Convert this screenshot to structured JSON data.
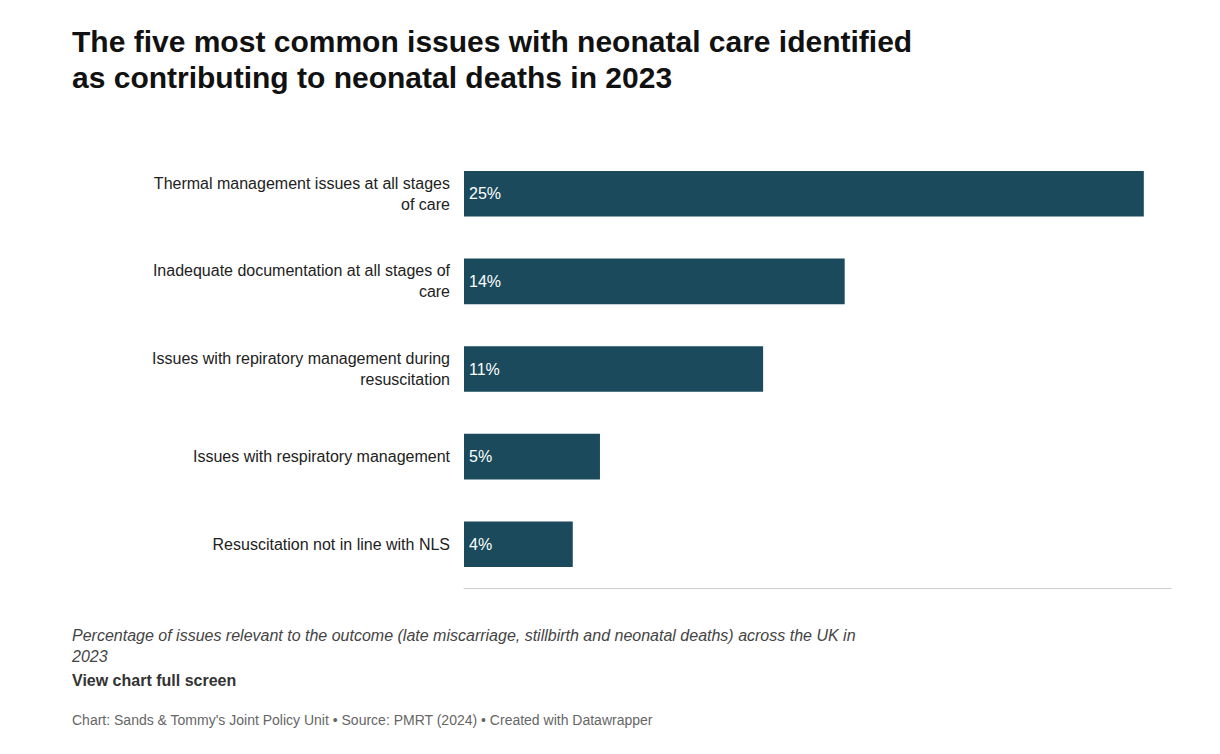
{
  "chart_data": {
    "type": "bar",
    "orientation": "horizontal",
    "title": "The five most common issues with neonatal care identified\nas contributing to neonatal deaths in 2023",
    "subtitle": "Percentage of issues relevant to the outcome (late miscarriage, stillbirth and neonatal deaths) across the UK in\n2023",
    "annotations": [
      "View chart full screen",
      "Chart: Sands & Tommy's Joint Policy Unit • Source: PMRT (2024) • Created with Datawrapper"
    ],
    "categories": [
      "Thermal management issues at all stages\nof care",
      "Inadequate documentation at all stages of\ncare",
      "Issues with repiratory management during\nresuscitation",
      "Issues with respiratory management",
      "Resuscitation not in line with NLS"
    ],
    "values": [
      25,
      14,
      11,
      5,
      4
    ],
    "value_labels": [
      "25%",
      "14%",
      "11%",
      "5%",
      "4%"
    ],
    "data_labels": true,
    "color": "#1a4a5c",
    "xlim": [
      0,
      26
    ],
    "grid": false,
    "tick_labels": "y"
  }
}
